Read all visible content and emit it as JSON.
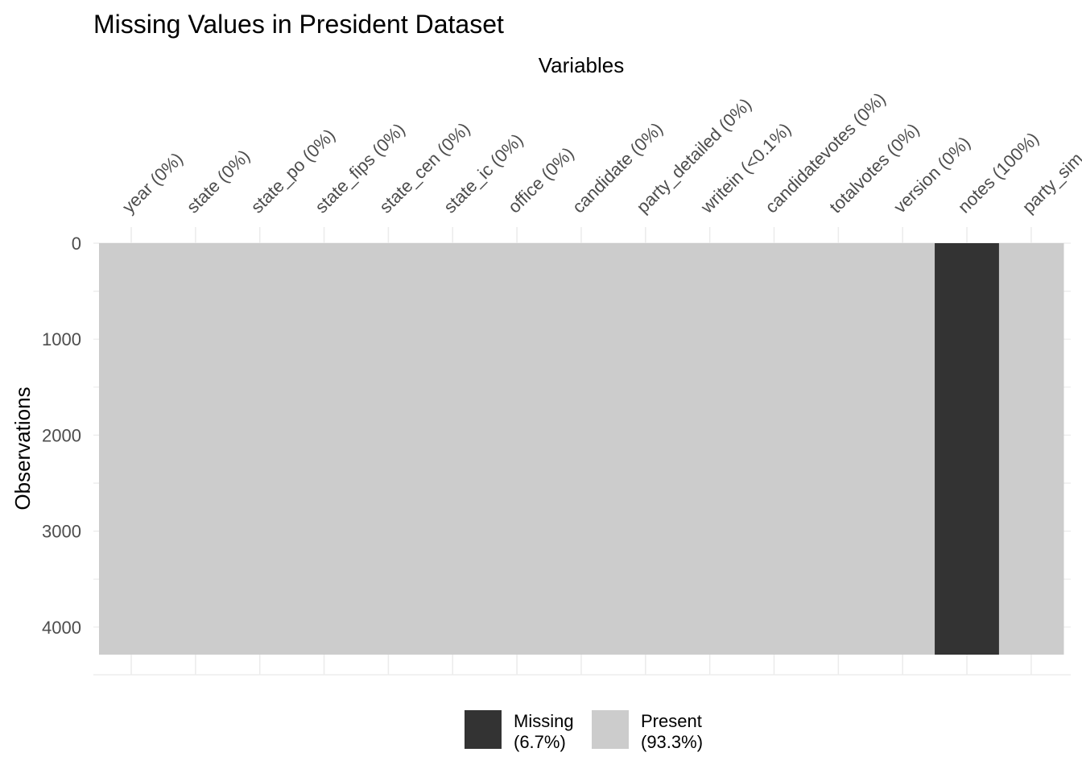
{
  "chart_data": {
    "type": "heatmap",
    "title": "Missing Values in President Dataset",
    "xlabel": "Variables",
    "ylabel": "Observations",
    "x_axis_position": "top",
    "y_reversed": true,
    "ylim": [
      0,
      4287
    ],
    "y_ticks": [
      "0",
      "1000",
      "2000",
      "3000",
      "4000"
    ],
    "y_tick_values": [
      0,
      1000,
      2000,
      3000,
      4000
    ],
    "columns": [
      {
        "label": "year (0%)",
        "missing_pct": 0
      },
      {
        "label": "state (0%)",
        "missing_pct": 0
      },
      {
        "label": "state_po (0%)",
        "missing_pct": 0
      },
      {
        "label": "state_fips (0%)",
        "missing_pct": 0
      },
      {
        "label": "state_cen (0%)",
        "missing_pct": 0
      },
      {
        "label": "state_ic (0%)",
        "missing_pct": 0
      },
      {
        "label": "office (0%)",
        "missing_pct": 0
      },
      {
        "label": "candidate (0%)",
        "missing_pct": 0
      },
      {
        "label": "party_detailed (0%)",
        "missing_pct": 0
      },
      {
        "label": "writein (<0.1%)",
        "missing_pct": 0.1
      },
      {
        "label": "candidatevotes (0%)",
        "missing_pct": 0
      },
      {
        "label": "totalvotes (0%)",
        "missing_pct": 0
      },
      {
        "label": "version (0%)",
        "missing_pct": 0
      },
      {
        "label": "notes (100%)",
        "missing_pct": 100
      },
      {
        "label": "party_sim",
        "missing_pct": 0
      }
    ],
    "legend": {
      "position": "bottom",
      "items": [
        {
          "label": "Missing",
          "pct": "(6.7%)",
          "color": "#333333"
        },
        {
          "label": "Present",
          "pct": "(93.3%)",
          "color": "#cccccc"
        }
      ]
    },
    "colors": {
      "missing": "#333333",
      "present": "#cccccc",
      "grid": "#ebebeb"
    },
    "grid": true
  }
}
